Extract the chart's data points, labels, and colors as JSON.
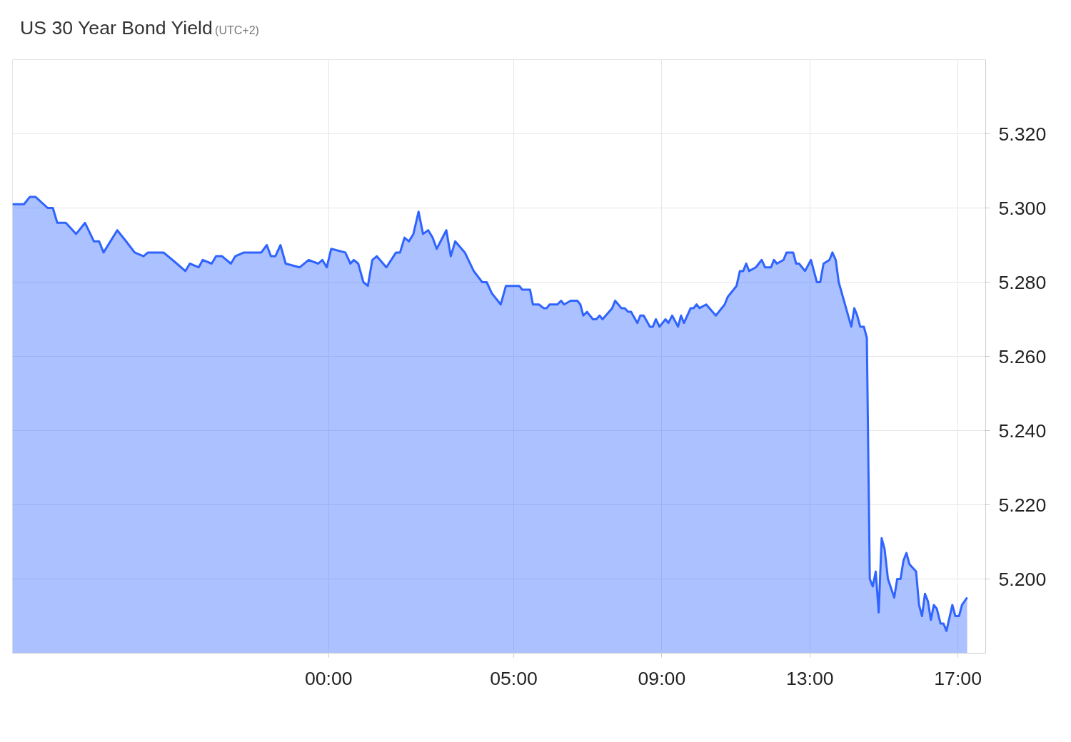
{
  "chart_data": {
    "type": "area",
    "title": "US 30 Year Bond Yield",
    "subtitle": "(UTC+2)",
    "xlim": [
      -8.54,
      17.75
    ],
    "ylim": [
      5.18,
      5.34
    ],
    "xticks": [
      {
        "value": 0,
        "label": "00:00"
      },
      {
        "value": 5,
        "label": "05:00"
      },
      {
        "value": 9,
        "label": "09:00"
      },
      {
        "value": 13,
        "label": "13:00"
      },
      {
        "value": 17,
        "label": "17:00"
      }
    ],
    "yticks": [
      {
        "value": 5.2,
        "label": "5.200"
      },
      {
        "value": 5.22,
        "label": "5.220"
      },
      {
        "value": 5.24,
        "label": "5.240"
      },
      {
        "value": 5.26,
        "label": "5.260"
      },
      {
        "value": 5.28,
        "label": "5.280"
      },
      {
        "value": 5.3,
        "label": "5.300"
      },
      {
        "value": 5.32,
        "label": "5.320"
      }
    ],
    "grid": true,
    "series": [
      {
        "color": "#2f64ff",
        "x": [
          -8.54,
          -8.23,
          -8.07,
          -7.92,
          -7.59,
          -7.45,
          -7.33,
          -7.1,
          -6.82,
          -6.58,
          -6.34,
          -6.2,
          -6.08,
          -5.71,
          -5.47,
          -5.24,
          -5.0,
          -4.88,
          -4.46,
          -4.1,
          -3.87,
          -3.75,
          -3.51,
          -3.4,
          -3.16,
          -3.04,
          -2.88,
          -2.64,
          -2.52,
          -2.29,
          -2.05,
          -1.82,
          -1.67,
          -1.56,
          -1.44,
          -1.3,
          -1.16,
          -0.78,
          -0.54,
          -0.28,
          -0.17,
          -0.05,
          0.07,
          0.45,
          0.59,
          0.68,
          0.8,
          0.94,
          1.06,
          1.18,
          1.3,
          1.56,
          1.82,
          1.93,
          2.05,
          2.17,
          2.29,
          2.43,
          2.55,
          2.69,
          2.81,
          2.92,
          3.18,
          3.3,
          3.42,
          3.68,
          3.92,
          4.15,
          4.27,
          4.41,
          4.65,
          4.79,
          5.15,
          5.23,
          5.44,
          5.52,
          5.68,
          5.81,
          5.89,
          5.97,
          6.18,
          6.28,
          6.36,
          6.54,
          6.72,
          6.8,
          6.88,
          6.98,
          7.14,
          7.23,
          7.32,
          7.4,
          7.66,
          7.74,
          7.91,
          8.0,
          8.09,
          8.17,
          8.34,
          8.42,
          8.51,
          8.68,
          8.76,
          8.84,
          8.94,
          9.1,
          9.18,
          9.28,
          9.44,
          9.52,
          9.6,
          9.78,
          9.86,
          9.94,
          10.02,
          10.2,
          10.46,
          10.7,
          10.78,
          11.02,
          11.11,
          11.2,
          11.28,
          11.36,
          11.54,
          11.7,
          11.79,
          11.95,
          12.03,
          12.11,
          12.29,
          12.37,
          12.55,
          12.63,
          12.71,
          12.87,
          13.03,
          13.19,
          13.28,
          13.37,
          13.53,
          13.61,
          13.7,
          13.78,
          14.12,
          14.2,
          14.28,
          14.36,
          14.46,
          14.54,
          14.62,
          14.7,
          14.78,
          14.86,
          14.94,
          15.02,
          15.11,
          15.28,
          15.36,
          15.45,
          15.53,
          15.61,
          15.69,
          15.87,
          15.95,
          16.03,
          16.11,
          16.19,
          16.27,
          16.35,
          16.43,
          16.53,
          16.61,
          16.69,
          16.85,
          16.93,
          17.03,
          17.11,
          17.25
        ],
        "values": [
          5.301,
          5.301,
          5.303,
          5.303,
          5.3,
          5.3,
          5.296,
          5.296,
          5.293,
          5.296,
          5.291,
          5.291,
          5.288,
          5.294,
          5.291,
          5.288,
          5.287,
          5.288,
          5.288,
          5.285,
          5.283,
          5.285,
          5.284,
          5.286,
          5.285,
          5.287,
          5.287,
          5.285,
          5.287,
          5.288,
          5.288,
          5.288,
          5.29,
          5.287,
          5.287,
          5.29,
          5.285,
          5.284,
          5.286,
          5.285,
          5.286,
          5.284,
          5.289,
          5.288,
          5.285,
          5.286,
          5.285,
          5.28,
          5.279,
          5.286,
          5.287,
          5.284,
          5.288,
          5.288,
          5.292,
          5.291,
          5.293,
          5.299,
          5.293,
          5.294,
          5.292,
          5.289,
          5.294,
          5.287,
          5.291,
          5.288,
          5.283,
          5.28,
          5.28,
          5.277,
          5.274,
          5.279,
          5.279,
          5.278,
          5.278,
          5.274,
          5.274,
          5.273,
          5.273,
          5.274,
          5.274,
          5.275,
          5.274,
          5.275,
          5.275,
          5.274,
          5.271,
          5.272,
          5.27,
          5.27,
          5.271,
          5.27,
          5.273,
          5.275,
          5.273,
          5.273,
          5.272,
          5.272,
          5.269,
          5.271,
          5.271,
          5.268,
          5.268,
          5.27,
          5.268,
          5.27,
          5.269,
          5.271,
          5.268,
          5.271,
          5.269,
          5.273,
          5.273,
          5.274,
          5.273,
          5.274,
          5.271,
          5.274,
          5.276,
          5.279,
          5.283,
          5.283,
          5.285,
          5.283,
          5.284,
          5.286,
          5.284,
          5.284,
          5.286,
          5.285,
          5.286,
          5.288,
          5.288,
          5.285,
          5.285,
          5.283,
          5.286,
          5.28,
          5.28,
          5.285,
          5.286,
          5.288,
          5.286,
          5.28,
          5.268,
          5.273,
          5.271,
          5.268,
          5.268,
          5.265,
          5.2,
          5.198,
          5.202,
          5.191,
          5.211,
          5.208,
          5.2,
          5.195,
          5.2,
          5.2,
          5.205,
          5.207,
          5.204,
          5.202,
          5.193,
          5.19,
          5.196,
          5.194,
          5.189,
          5.193,
          5.192,
          5.188,
          5.188,
          5.186,
          5.193,
          5.19,
          5.19,
          5.193,
          5.195
        ]
      }
    ]
  }
}
